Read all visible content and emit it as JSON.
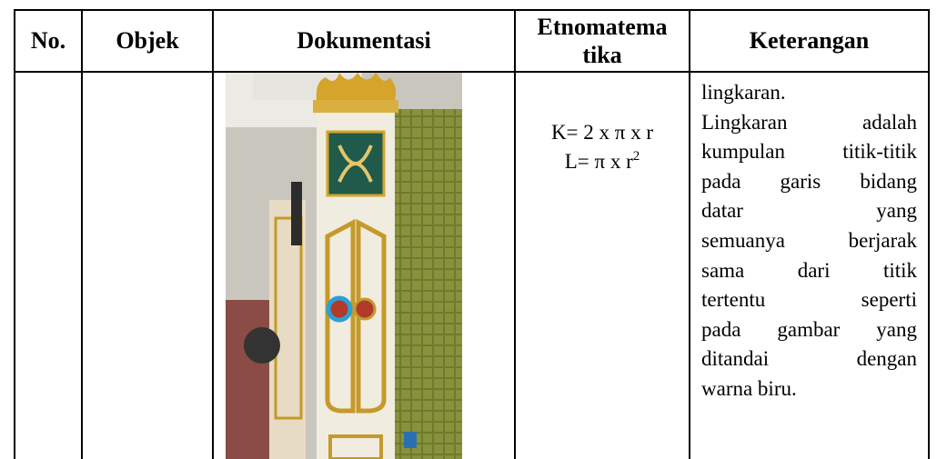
{
  "table": {
    "header": [
      "No.",
      "Objek",
      "Dokumentasi",
      [
        "Etnomatema",
        "tika"
      ],
      "Keterangan"
    ],
    "rows": [
      [
        null,
        null,
        null,
        [
          "K= 2 x π x r",
          {
            "text": "L= π x r",
            "sup": "2"
          }
        ],
        [
          "lingkaran.",
          "Lingkaran adalah",
          "kumpulan titik-titik",
          "pada garis bidang",
          "datar yang",
          "semuanya berjarak",
          "sama dari titik",
          "tertentu seperti",
          "pada gambar yang",
          "ditandai dengan",
          "warna biru."
        ]
      ]
    ]
  }
}
